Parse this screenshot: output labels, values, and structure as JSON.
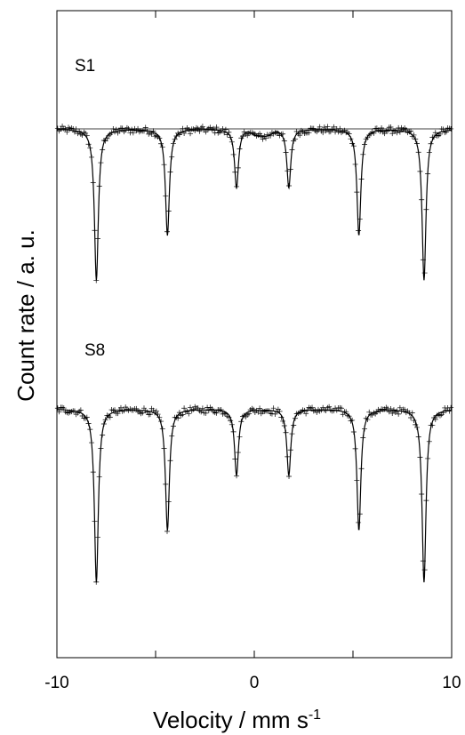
{
  "chart_data": {
    "type": "scatter",
    "xlabel": "Velocity / mm s",
    "xlabel_superscript": "-1",
    "ylabel": "Count rate / a. u.",
    "xlim": [
      -10,
      10
    ],
    "xticks": [
      -10,
      -5,
      0,
      5,
      10
    ],
    "xtick_labels": [
      "-10",
      "0",
      "10"
    ],
    "grid": false,
    "y_units": "arbitrary (normalized transmission, series offset vertically)",
    "series": [
      {
        "name": "S1",
        "baseline": 1.0,
        "noise": 0.006,
        "peaks": [
          {
            "v": -8.0,
            "depth": 0.27
          },
          {
            "v": -4.4,
            "depth": 0.19
          },
          {
            "v": -0.9,
            "depth": 0.105
          },
          {
            "v": 1.75,
            "depth": 0.105
          },
          {
            "v": 5.3,
            "depth": 0.19
          },
          {
            "v": 8.6,
            "depth": 0.27
          }
        ],
        "width": 0.12,
        "extra_component": {
          "v_min": -0.3,
          "v_max": 1.1,
          "depth": 0.012
        },
        "flat_line": true
      },
      {
        "name": "S8",
        "baseline": 1.0,
        "noise": 0.006,
        "peaks": [
          {
            "v": -8.0,
            "depth": 0.3
          },
          {
            "v": -4.4,
            "depth": 0.21
          },
          {
            "v": -0.9,
            "depth": 0.115
          },
          {
            "v": 1.75,
            "depth": 0.115
          },
          {
            "v": 5.3,
            "depth": 0.21
          },
          {
            "v": 8.6,
            "depth": 0.3
          }
        ],
        "width": 0.12,
        "flat_line": false
      }
    ]
  }
}
